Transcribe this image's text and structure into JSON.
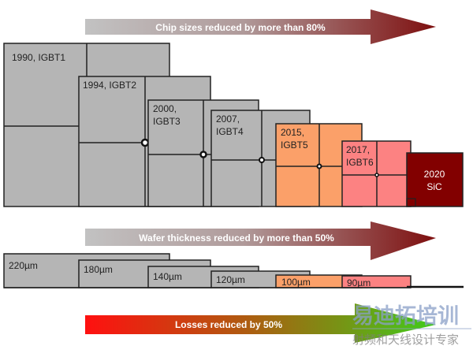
{
  "arrows": {
    "chip": "Chip sizes reduced by more than 80%",
    "wafer": "Wafer thickness reduced by more than 50%",
    "losses": "Losses reduced by  50%"
  },
  "chips": [
    {
      "line1": "1990, IGBT1",
      "line2": "",
      "color": "#b5b5b5"
    },
    {
      "line1": "1994, IGBT2",
      "line2": "",
      "color": "#b5b5b5"
    },
    {
      "line1": "2000,",
      "line2": "IGBT3",
      "color": "#b5b5b5"
    },
    {
      "line1": "2007,",
      "line2": "IGBT4",
      "color": "#b5b5b5"
    },
    {
      "line1": "2015,",
      "line2": "IGBT5",
      "color": "#fba069"
    },
    {
      "line1": "2017,",
      "line2": "IGBT6",
      "color": "#fc8282"
    },
    {
      "line1": "2020",
      "line2": "SiC",
      "color": "#820000"
    }
  ],
  "wafers": [
    "220µm",
    "180µm",
    "140µm",
    "120µm",
    "100µm",
    "90µm"
  ],
  "watermark": {
    "title": "易迪拓培训",
    "subtitle": "射频和天线设计专家"
  }
}
